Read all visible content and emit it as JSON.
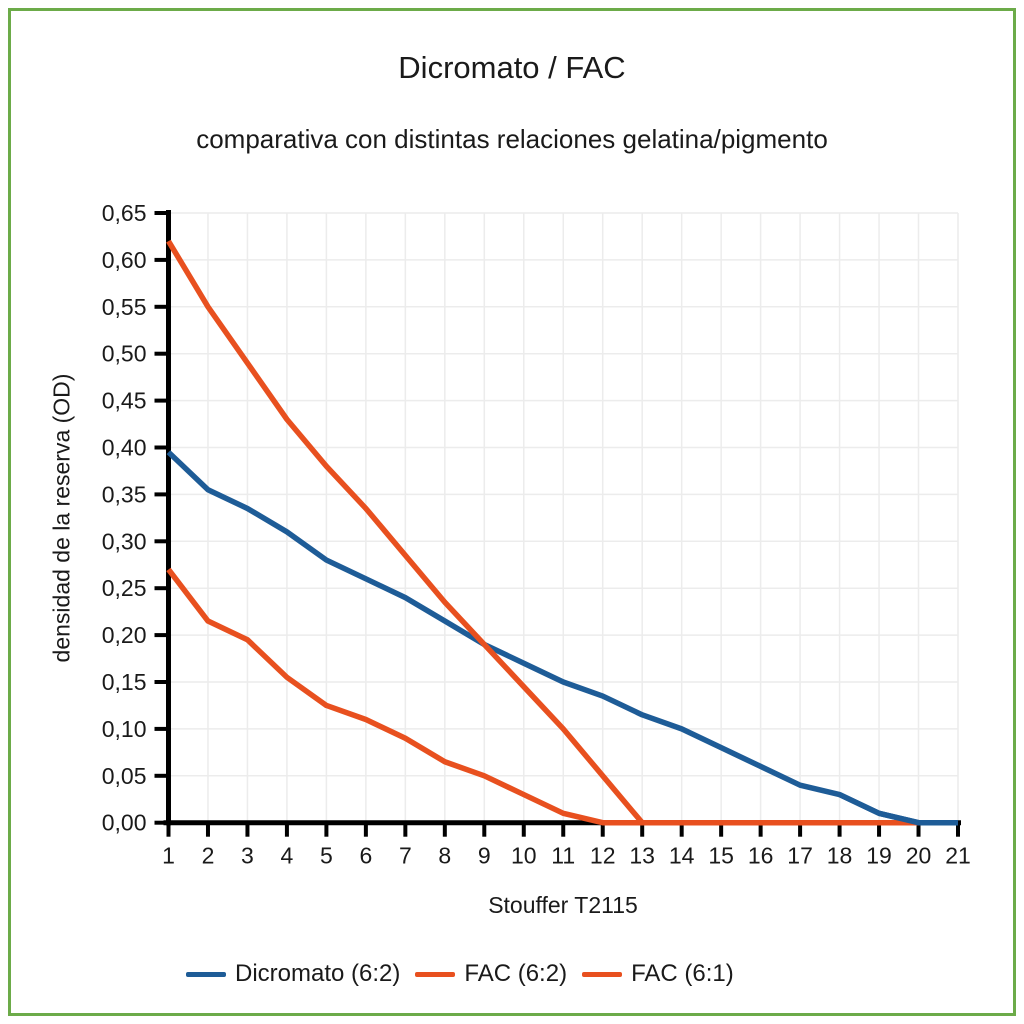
{
  "frame": {
    "border_color": "#6cab49"
  },
  "chart_data": {
    "type": "line",
    "title": "Dicromato / FAC",
    "subtitle": "comparativa con distintas relaciones gelatina/pigmento",
    "xlabel": "Stouffer T2115",
    "ylabel": "densidad de la reserva (OD)",
    "x": [
      1,
      2,
      3,
      4,
      5,
      6,
      7,
      8,
      9,
      10,
      11,
      12,
      13,
      14,
      15,
      16,
      17,
      18,
      19,
      20,
      21
    ],
    "xlim": [
      1,
      21
    ],
    "ylim": [
      0.0,
      0.65
    ],
    "y_tick_step": 0.05,
    "decimal_separator": ",",
    "grid": true,
    "legend_position": "bottom",
    "axis_color": "#000000",
    "grid_color": "#ececec",
    "series": [
      {
        "name": "Dicromato (6:2)",
        "color": "#1e5c97",
        "values": [
          0.395,
          0.355,
          0.335,
          0.31,
          0.28,
          0.26,
          0.24,
          0.215,
          0.19,
          0.17,
          0.15,
          0.135,
          0.115,
          0.1,
          0.08,
          0.06,
          0.04,
          0.03,
          0.01,
          0.0,
          0.0
        ]
      },
      {
        "name": "FAC (6:2)",
        "color": "#e8501f",
        "values": [
          0.62,
          0.55,
          0.49,
          0.43,
          0.38,
          0.335,
          0.285,
          0.235,
          0.19,
          0.145,
          0.1,
          0.05,
          0.0,
          0.0,
          0.0,
          0.0,
          0.0,
          0.0,
          0.0,
          0.0,
          0.0
        ]
      },
      {
        "name": "FAC (6:1)",
        "color": "#e8501f",
        "values": [
          0.27,
          0.215,
          0.195,
          0.155,
          0.125,
          0.11,
          0.09,
          0.065,
          0.05,
          0.03,
          0.01,
          0.0,
          0.0,
          0.0,
          0.0,
          0.0,
          0.0,
          0.0,
          0.0,
          0.0,
          0.0
        ]
      }
    ]
  }
}
